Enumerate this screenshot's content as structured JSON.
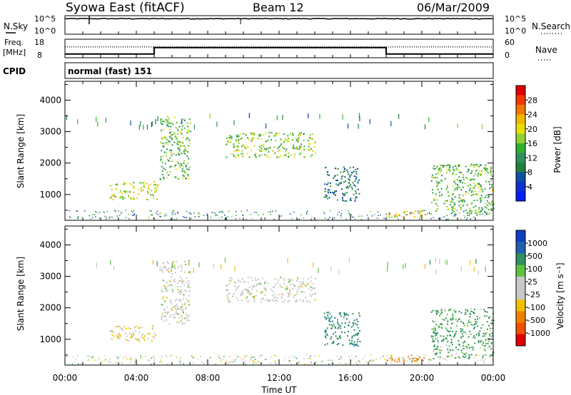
{
  "header": {
    "title": "Syowa East (fitACF)",
    "beam": "Beam 12",
    "date": "06/Mar/2009"
  },
  "noise_panel": {
    "left_label": "N.Sky",
    "right_label": "N.Search",
    "left_ticks": [
      "10^5",
      "10^0"
    ],
    "right_ticks": [
      "10^5",
      "10^0"
    ]
  },
  "freq_panel": {
    "left_label_line1": "Freq.",
    "left_label_line2": "[MHz]",
    "right_label": "Nave",
    "left_ticks": [
      "18",
      "8"
    ],
    "right_ticks": [
      "60",
      "0"
    ]
  },
  "cpid": {
    "label": "CPID",
    "value": "normal (fast) 151"
  },
  "power_panel": {
    "ylabel": "Slant Range [km]",
    "colorbar_label": "Power [dB]",
    "colorbar_ticks": [
      "28",
      "24",
      "20",
      "16",
      "12",
      "8",
      "4"
    ],
    "colorbar_colors": [
      "#e00000",
      "#f03800",
      "#f07800",
      "#f0b800",
      "#e8e000",
      "#90d030",
      "#30b030",
      "#309060",
      "#208040",
      "#1050a0",
      "#1030d0",
      "#0020f0"
    ]
  },
  "velocity_panel": {
    "ylabel": "Slant Range [km]",
    "colorbar_label": "Velocity [m s⁻¹]",
    "colorbar_ticks": [
      "1000",
      "500",
      "100",
      "25",
      "-25",
      "-100",
      "-500",
      "-1000"
    ],
    "colorbar_colors": [
      "#1040c0",
      "#2060b0",
      "#309060",
      "#60c040",
      "#c8c8c8",
      "#c8c8c8",
      "#f0c000",
      "#f08000",
      "#f05000",
      "#e00000"
    ]
  },
  "x_axis": {
    "label": "Time UT",
    "ticks": [
      "00:00",
      "04:00",
      "08:00",
      "12:00",
      "16:00",
      "20:00",
      "00:00"
    ]
  },
  "chart_data": [
    {
      "type": "line",
      "title": "Syowa East (fitACF)",
      "name": "noise",
      "x": [
        "00:00",
        "04:00",
        "08:00",
        "12:00",
        "16:00",
        "20:00",
        "24:00"
      ],
      "series": [
        {
          "name": "N.Sky",
          "values": [
            4.5,
            4.5,
            4.5,
            4.5,
            4.5,
            4.5,
            4.5
          ]
        }
      ],
      "ylim": [
        "10^0",
        "10^5"
      ]
    },
    {
      "type": "line",
      "name": "frequency",
      "x_hours": [
        0,
        5,
        5,
        18,
        18,
        24
      ],
      "series": [
        {
          "name": "Freq. [MHz]",
          "values": [
            10,
            10,
            13.5,
            13.5,
            10,
            10
          ]
        },
        {
          "name": "Nave",
          "values": [
            35,
            35,
            35,
            35,
            35,
            35
          ]
        }
      ],
      "ylim": [
        8,
        18
      ],
      "y2lim": [
        0,
        60
      ]
    },
    {
      "type": "heatmap",
      "name": "power",
      "xlabel": "Time UT",
      "ylabel": "Slant Range [km]",
      "xlim_hours": [
        0,
        24
      ],
      "ylim_km": [
        180,
        4600
      ],
      "colorbar": "Power [dB]",
      "color_range": [
        0,
        30
      ],
      "echo_regions": [
        {
          "t": [
            2.5,
            5.2
          ],
          "r": [
            850,
            1450
          ],
          "level": 18
        },
        {
          "t": [
            5.3,
            7.0
          ],
          "r": [
            1500,
            3500
          ],
          "level": 14
        },
        {
          "t": [
            9.0,
            14.0
          ],
          "r": [
            2200,
            3000
          ],
          "level": 16
        },
        {
          "t": [
            14.5,
            16.5
          ],
          "r": [
            800,
            1900
          ],
          "level": 8
        },
        {
          "t": [
            18.0,
            20.5
          ],
          "r": [
            300,
            500
          ],
          "level": 20
        },
        {
          "t": [
            20.5,
            24.0
          ],
          "r": [
            400,
            2000
          ],
          "level": 14
        }
      ]
    },
    {
      "type": "heatmap",
      "name": "velocity",
      "xlabel": "Time UT",
      "ylabel": "Slant Range [km]",
      "xlim_hours": [
        0,
        24
      ],
      "ylim_km": [
        180,
        4600
      ],
      "colorbar": "Velocity [m s⁻¹]",
      "color_range": [
        -1000,
        1000
      ],
      "echo_regions": [
        {
          "t": [
            2.5,
            5.2
          ],
          "r": [
            950,
            1450
          ],
          "level": -30
        },
        {
          "t": [
            5.3,
            7.0
          ],
          "r": [
            1500,
            3500
          ],
          "level": 0
        },
        {
          "t": [
            9.0,
            14.0
          ],
          "r": [
            2200,
            3000
          ],
          "level": 0
        },
        {
          "t": [
            14.5,
            16.5
          ],
          "r": [
            800,
            1900
          ],
          "level": 80
        },
        {
          "t": [
            18.0,
            20.5
          ],
          "r": [
            300,
            500
          ],
          "level": -150
        },
        {
          "t": [
            20.5,
            24.0
          ],
          "r": [
            400,
            2000
          ],
          "level": 50
        }
      ]
    }
  ]
}
